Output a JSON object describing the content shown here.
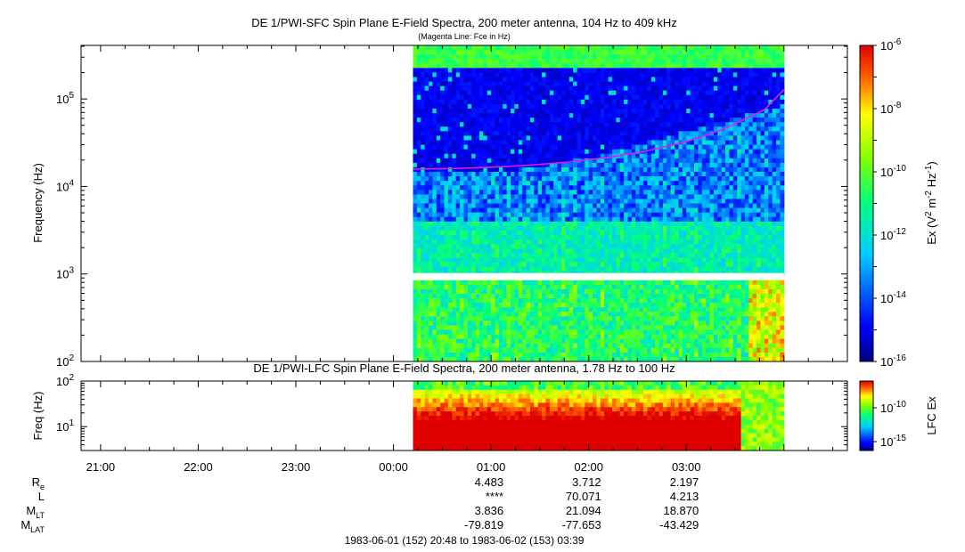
{
  "chart_data": [
    {
      "type": "heatmap",
      "title": "DE 1/PWI-SFC  Spin Plane E-Field Spectra, 200 meter antenna, 104 Hz to 409 kHz",
      "subtitle": "(Magenta Line: Fce in Hz)",
      "ylabel": "Frequency (Hz)",
      "y_scale": "log",
      "ylim": [
        100,
        409000
      ],
      "y_ticks": [
        {
          "value": 100,
          "base": "10",
          "exp": "2"
        },
        {
          "value": 1000,
          "base": "10",
          "exp": "3"
        },
        {
          "value": 10000,
          "base": "10",
          "exp": "4"
        },
        {
          "value": 100000,
          "base": "10",
          "exp": "5"
        }
      ],
      "colorbar": {
        "label_parts": [
          "Ex (V",
          "2",
          " m",
          "-2",
          " Hz",
          "-1",
          ")"
        ],
        "scale": "log",
        "range": [
          1e-16,
          1e-06
        ],
        "ticks": [
          {
            "value": 1e-06,
            "base": "10",
            "exp": "-6"
          },
          {
            "value": 1e-08,
            "base": "10",
            "exp": "-8"
          },
          {
            "value": 1e-10,
            "base": "10",
            "exp": "-10"
          },
          {
            "value": 1e-12,
            "base": "10",
            "exp": "-12"
          },
          {
            "value": 1e-14,
            "base": "10",
            "exp": "-14"
          },
          {
            "value": 1e-16,
            "base": "10",
            "exp": "-16"
          }
        ]
      },
      "data_coverage_hours": [
        3.2,
        7.0
      ],
      "fce_line": {
        "color": "#e020e0",
        "x_hours": [
          3.2,
          3.6,
          4.0,
          4.4,
          4.8,
          5.2,
          5.6,
          6.0,
          6.4,
          6.8,
          7.0
        ],
        "y_hz": [
          15800,
          16000,
          16600,
          17500,
          19000,
          21500,
          25500,
          32500,
          46000,
          75000,
          128000
        ]
      }
    },
    {
      "type": "heatmap",
      "title": "DE 1/PWI-LFC  Spin Plane E-Field Spectra, 200 meter antenna, 1.78 Hz to 100 Hz",
      "ylabel": "Freq (Hz)",
      "y_scale": "log",
      "ylim": [
        3,
        100
      ],
      "y_ticks": [
        {
          "value": 10,
          "base": "10",
          "exp": "1"
        },
        {
          "value": 100,
          "base": "10",
          "exp": "2"
        }
      ],
      "colorbar": {
        "label": "LFC Ex",
        "scale": "log",
        "ticks": [
          {
            "value": 1e-10,
            "base": "10",
            "exp": "-10"
          },
          {
            "value": 1e-15,
            "base": "10",
            "exp": "-15"
          }
        ]
      },
      "data_coverage_hours": [
        3.2,
        7.0
      ]
    }
  ],
  "time_axis": {
    "xlim_hours": [
      -0.2,
      7.65
    ],
    "ticks": [
      {
        "hour": 0,
        "label": "21:00"
      },
      {
        "hour": 1,
        "label": "22:00"
      },
      {
        "hour": 2,
        "label": "23:00"
      },
      {
        "hour": 3,
        "label": "00:00"
      },
      {
        "hour": 4,
        "label": "01:00"
      },
      {
        "hour": 5,
        "label": "02:00"
      },
      {
        "hour": 6,
        "label": "03:00"
      }
    ]
  },
  "ephemeris": {
    "rows": [
      {
        "label": "R",
        "sub": "e",
        "values": [
          "4.483",
          "3.712",
          "2.197"
        ]
      },
      {
        "label": "L",
        "sub": "",
        "values": [
          "****",
          "70.071",
          "4.213"
        ]
      },
      {
        "label": "M",
        "sub": "LT",
        "values": [
          "3.836",
          "21.094",
          "18.870"
        ]
      },
      {
        "label": "M",
        "sub": "LAT",
        "values": [
          "-79.819",
          "-77.653",
          "-43.429"
        ]
      }
    ],
    "value_hours": [
      4,
      5,
      6
    ]
  },
  "footer": "1983-06-01 (152) 20:48 to 1983-06-02 (153) 03:39"
}
